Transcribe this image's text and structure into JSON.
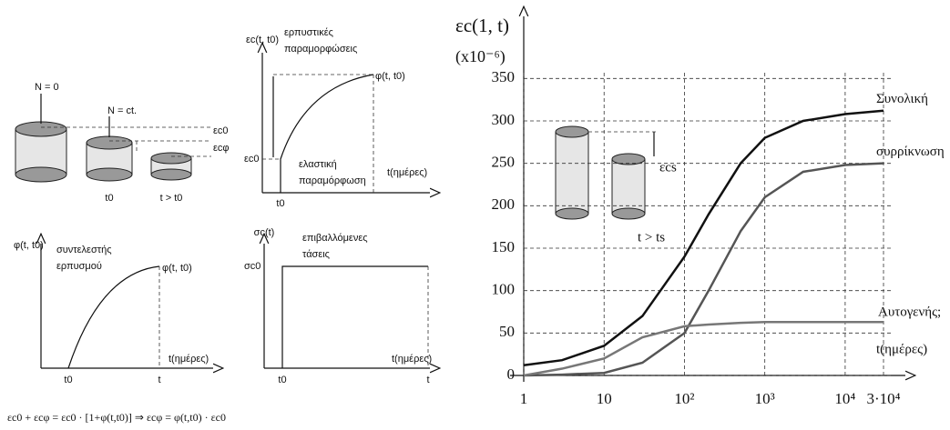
{
  "chart_data": {
    "type": "line",
    "ylabel": "εc(1, t)",
    "yunit": "(x10⁻⁶)",
    "xlabel": "t(ημέρες)",
    "x": [
      1,
      3,
      10,
      30,
      100,
      200,
      500,
      1000,
      3000,
      10000,
      30000
    ],
    "series": [
      {
        "name": "Συνολική",
        "color": "#111111",
        "values": [
          12,
          18,
          35,
          70,
          140,
          190,
          250,
          280,
          300,
          308,
          312
        ]
      },
      {
        "name": "συρρίκνωση",
        "color": "#555555",
        "values": [
          0,
          1,
          3,
          15,
          50,
          100,
          170,
          210,
          240,
          248,
          250
        ]
      },
      {
        "name": "Αυτογενής;",
        "color": "#777777",
        "values": [
          0,
          8,
          20,
          45,
          58,
          60,
          62,
          63,
          63,
          63,
          63
        ]
      }
    ],
    "xscale": "log",
    "xlim": [
      1,
      30000
    ],
    "xticks": [
      1,
      10,
      {
        "value": 100,
        "label": "10²"
      },
      {
        "value": 1000,
        "label": "10³"
      },
      {
        "value": 10000,
        "label": "10⁴"
      },
      {
        "value": 30000,
        "label": "3·10⁴"
      }
    ],
    "ylim": [
      0,
      360
    ],
    "yticks": [
      0,
      50,
      100,
      150,
      200,
      250,
      300,
      350
    ],
    "grid": true,
    "annotations": [
      "εcs",
      "t > ts"
    ]
  },
  "diagrams": {
    "cylinders": {
      "n0": "N = 0",
      "nct": "N = ct.",
      "ec0": "εc0",
      "ecf": "εcφ",
      "t0": "t0",
      "tgt": "t > t0"
    },
    "strain": {
      "ylabel": "εc(t, t0)",
      "creep1": "ερπυστικές",
      "creep2": "παραμορφώσεις",
      "phi": "φ(t, t0)",
      "el1": "ελαστική",
      "el2": "παραμόρφωση",
      "ec0": "εc0",
      "xlabel": "t(ημέρες)",
      "t0": "t0"
    },
    "coefficient": {
      "ylabel": "φ(t, t0)",
      "c1": "συντελεστής",
      "c2": "ερπυσμού",
      "phi": "φ(t, t0)",
      "xlabel": "t(ημέρες)",
      "t0": "t0",
      "t": "t"
    },
    "stress": {
      "ylabel": "σc(t)",
      "s1": "επιβαλλόμενες",
      "s2": "τάσεις",
      "sc0": "σc0",
      "xlabel": "t(ημέρες)",
      "t0": "t0",
      "t": "t"
    },
    "formula": "εc0 + εcφ = εc0 · [1+φ(t,t0)] ⇒ εcφ = φ(t,t0) · εc0"
  }
}
